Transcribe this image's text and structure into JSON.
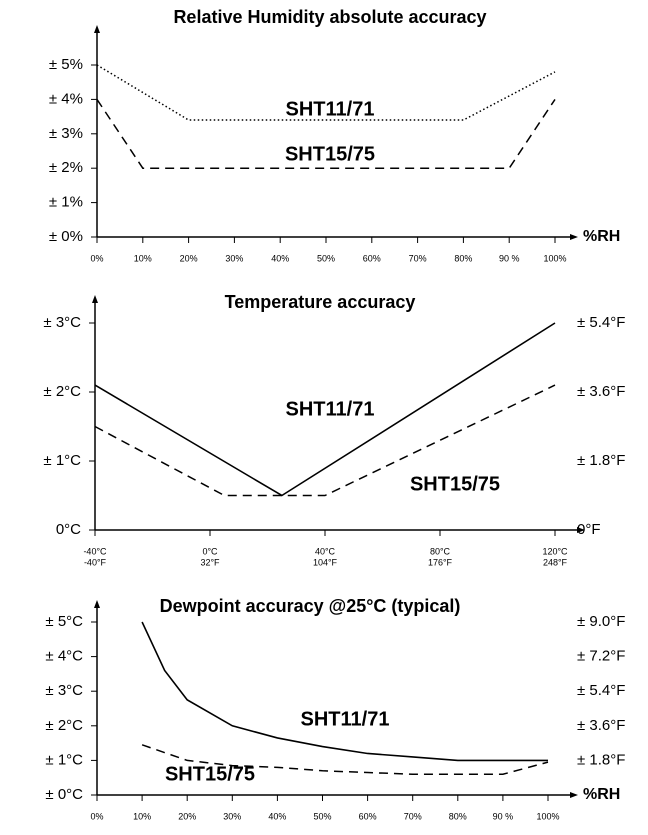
{
  "chart_data": [
    {
      "type": "line",
      "title": "Relative Humidity absolute accuracy",
      "xlabel": "%RH",
      "xlim": [
        0,
        100
      ],
      "ylim": [
        0,
        5
      ],
      "xticks": [
        {
          "value": 0,
          "label": "0%"
        },
        {
          "value": 10,
          "label": "10%"
        },
        {
          "value": 20,
          "label": "20%"
        },
        {
          "value": 30,
          "label": "30%"
        },
        {
          "value": 40,
          "label": "40%"
        },
        {
          "value": 50,
          "label": "50%"
        },
        {
          "value": 60,
          "label": "60%"
        },
        {
          "value": 70,
          "label": "70%"
        },
        {
          "value": 80,
          "label": "80%"
        },
        {
          "value": 90,
          "label": "90 %"
        },
        {
          "value": 100,
          "label": "100%"
        }
      ],
      "yticks": [
        {
          "value": 0,
          "label": "± 0%"
        },
        {
          "value": 1,
          "label": "± 1%"
        },
        {
          "value": 2,
          "label": "± 2%"
        },
        {
          "value": 3,
          "label": "± 3%"
        },
        {
          "value": 4,
          "label": "± 4%"
        },
        {
          "value": 5,
          "label": "± 5%"
        }
      ],
      "series": [
        {
          "name": "SHT11/71",
          "color": "#000000",
          "style": "dotted",
          "x": [
            0,
            20,
            80,
            100
          ],
          "values": [
            5,
            3.4,
            3.4,
            4.8
          ]
        },
        {
          "name": "SHT15/75",
          "color": "#000000",
          "style": "dashed",
          "x": [
            0,
            10,
            90,
            100
          ],
          "values": [
            4,
            2,
            2,
            4
          ]
        }
      ]
    },
    {
      "type": "line",
      "title": "Temperature accuracy",
      "xlim": [
        -40,
        120
      ],
      "ylim": [
        0,
        3
      ],
      "y2lim": [
        0,
        5.4
      ],
      "xticks": [
        {
          "value": -40,
          "label": "-40°C"
        },
        {
          "value": 0,
          "label": "0°C"
        },
        {
          "value": 40,
          "label": "40°C"
        },
        {
          "value": 80,
          "label": "80°C"
        },
        {
          "value": 120,
          "label": "120°C"
        }
      ],
      "x2ticks": [
        {
          "value": -40,
          "label": "-40°F"
        },
        {
          "value": 0,
          "label": "32°F"
        },
        {
          "value": 40,
          "label": "104°F"
        },
        {
          "value": 80,
          "label": "176°F"
        },
        {
          "value": 120,
          "label": "248°F"
        }
      ],
      "yticks": [
        {
          "value": 0,
          "label": "0°C"
        },
        {
          "value": 1,
          "label": "± 1°C"
        },
        {
          "value": 2,
          "label": "± 2°C"
        },
        {
          "value": 3,
          "label": "± 3°C"
        }
      ],
      "y2ticks": [
        {
          "value": 0,
          "label": "0°F"
        },
        {
          "value": 1.8,
          "label": "± 1.8°F"
        },
        {
          "value": 3.6,
          "label": "± 3.6°F"
        },
        {
          "value": 5.4,
          "label": "± 5.4°F"
        }
      ],
      "series": [
        {
          "name": "SHT11/71",
          "color": "#000000",
          "style": "solid",
          "x": [
            -40,
            25,
            120
          ],
          "values": [
            2.1,
            0.5,
            3
          ]
        },
        {
          "name": "SHT15/75",
          "color": "#000000",
          "style": "dashed",
          "x": [
            -40,
            5,
            40,
            120
          ],
          "values": [
            1.5,
            0.5,
            0.5,
            2.1
          ]
        }
      ]
    },
    {
      "type": "line",
      "title": "Dewpoint accuracy @25°C (typical)",
      "xlabel": "%RH",
      "xlim": [
        0,
        100
      ],
      "ylim": [
        0,
        5
      ],
      "y2lim": [
        0,
        9
      ],
      "xticks": [
        {
          "value": 0,
          "label": "0%"
        },
        {
          "value": 10,
          "label": "10%"
        },
        {
          "value": 20,
          "label": "20%"
        },
        {
          "value": 30,
          "label": "30%"
        },
        {
          "value": 40,
          "label": "40%"
        },
        {
          "value": 50,
          "label": "50%"
        },
        {
          "value": 60,
          "label": "60%"
        },
        {
          "value": 70,
          "label": "70%"
        },
        {
          "value": 80,
          "label": "80%"
        },
        {
          "value": 90,
          "label": "90 %"
        },
        {
          "value": 100,
          "label": "100%"
        }
      ],
      "yticks": [
        {
          "value": 0,
          "label": "± 0°C"
        },
        {
          "value": 1,
          "label": "± 1°C"
        },
        {
          "value": 2,
          "label": "± 2°C"
        },
        {
          "value": 3,
          "label": "± 3°C"
        },
        {
          "value": 4,
          "label": "± 4°C"
        },
        {
          "value": 5,
          "label": "± 5°C"
        }
      ],
      "y2ticks": [
        {
          "value": 1.8,
          "label": "± 1.8°F"
        },
        {
          "value": 3.6,
          "label": "± 3.6°F"
        },
        {
          "value": 5.4,
          "label": "± 5.4°F"
        },
        {
          "value": 7.2,
          "label": "± 7.2°F"
        },
        {
          "value": 9,
          "label": "± 9.0°F"
        }
      ],
      "series": [
        {
          "name": "SHT11/71",
          "color": "#000000",
          "style": "solid",
          "x": [
            10,
            15,
            20,
            30,
            40,
            50,
            60,
            70,
            80,
            90,
            100
          ],
          "values": [
            5,
            3.6,
            2.75,
            2.0,
            1.65,
            1.4,
            1.2,
            1.1,
            1.0,
            1.0,
            1.0
          ]
        },
        {
          "name": "SHT15/75",
          "color": "#000000",
          "style": "dashed",
          "x": [
            10,
            20,
            30,
            40,
            50,
            60,
            70,
            80,
            90,
            100
          ],
          "values": [
            1.45,
            1.0,
            0.85,
            0.8,
            0.7,
            0.65,
            0.6,
            0.6,
            0.6,
            0.95
          ]
        }
      ]
    }
  ]
}
